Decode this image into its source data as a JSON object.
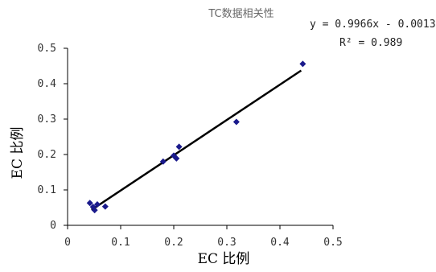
{
  "chart_data": {
    "type": "scatter",
    "title": "TC数据相关性",
    "xlabel": "EC 比例",
    "ylabel": "EC 比例",
    "xlim": [
      0,
      0.5
    ],
    "ylim": [
      0,
      0.5
    ],
    "x_ticks": [
      "0",
      "0.1",
      "0.2",
      "0.3",
      "0.4",
      "0.5"
    ],
    "y_ticks": [
      "0",
      "0.1",
      "0.2",
      "0.3",
      "0.4",
      "0.5"
    ],
    "grid": false,
    "series": [
      {
        "points": [
          {
            "x": 0.042,
            "y": 0.063
          },
          {
            "x": 0.048,
            "y": 0.052
          },
          {
            "x": 0.051,
            "y": 0.043
          },
          {
            "x": 0.056,
            "y": 0.059
          },
          {
            "x": 0.071,
            "y": 0.053
          },
          {
            "x": 0.18,
            "y": 0.18
          },
          {
            "x": 0.2,
            "y": 0.197
          },
          {
            "x": 0.205,
            "y": 0.189
          },
          {
            "x": 0.21,
            "y": 0.222
          },
          {
            "x": 0.318,
            "y": 0.292
          },
          {
            "x": 0.443,
            "y": 0.456
          }
        ],
        "color": "#1a1a8c"
      }
    ],
    "trendline": {
      "slope": 0.9966,
      "intercept": -0.0013,
      "x_range": [
        0.045,
        0.44
      ],
      "color": "#000000",
      "equation": "y = 0.9966x - 0.0013",
      "r2_label": "R² = 0.989"
    }
  }
}
